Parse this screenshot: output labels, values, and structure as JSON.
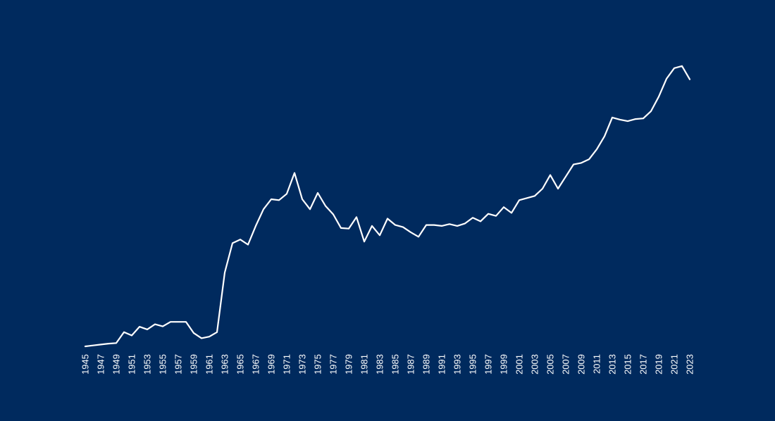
{
  "colors": {
    "background": "#002a5e",
    "line": "#ffffff",
    "text": "#ffffff"
  },
  "chart_data": {
    "type": "line",
    "title": "",
    "xlabel": "",
    "ylabel": "",
    "grid": false,
    "legend": "none",
    "x_tick_labels": [
      "1945",
      "1947",
      "1949",
      "1951",
      "1953",
      "1955",
      "1957",
      "1959",
      "1961",
      "1963",
      "1965",
      "1967",
      "1969",
      "1971",
      "1973",
      "1975",
      "1977",
      "1979",
      "1981",
      "1983",
      "1985",
      "1987",
      "1989",
      "1991",
      "1993",
      "1995",
      "1997",
      "1999",
      "2001",
      "2003",
      "2005",
      "2007",
      "2009",
      "2011",
      "2013",
      "2015",
      "2017",
      "2019",
      "2021",
      "2023"
    ],
    "ylim": [
      0,
      100
    ],
    "series": [
      {
        "x": [
          1945,
          1946,
          1947,
          1948,
          1949,
          1950,
          1951,
          1952,
          1953,
          1954,
          1955,
          1956,
          1957,
          1958,
          1959,
          1960,
          1961,
          1962,
          1963,
          1964,
          1965,
          1966,
          1967,
          1968,
          1969,
          1970,
          1971,
          1972,
          1973,
          1974,
          1975,
          1976,
          1977,
          1978,
          1979,
          1980,
          1981,
          1982,
          1983,
          1984,
          1985,
          1986,
          1987,
          1988,
          1989,
          1990,
          1991,
          1992,
          1993,
          1994,
          1995,
          1996,
          1997,
          1998,
          1999,
          2000,
          2001,
          2002,
          2003,
          2004,
          2005,
          2006,
          2007,
          2008,
          2009,
          2010,
          2011,
          2012,
          2013,
          2014,
          2015,
          2016,
          2017,
          2018,
          2019,
          2020,
          2021,
          2022,
          2023
        ],
        "values": [
          0,
          0.3,
          0.6,
          0.9,
          1.1,
          4.7,
          3.6,
          6.5,
          5.6,
          7.3,
          6.6,
          8.1,
          8.1,
          8.1,
          4.4,
          2.7,
          3.2,
          4.7,
          24.4,
          34.1,
          35.3,
          33.6,
          39.8,
          45.3,
          48.6,
          48.3,
          50.4,
          57.3,
          48.6,
          45.3,
          50.7,
          46.4,
          43.6,
          39.1,
          38.9,
          42.7,
          34.6,
          39.8,
          36.7,
          42.2,
          40.1,
          39.4,
          37.7,
          36.2,
          40.1,
          40.1,
          39.8,
          40.4,
          39.8,
          40.6,
          42.5,
          41.3,
          43.8,
          43.1,
          46.0,
          44.1,
          48.3,
          49.0,
          49.7,
          52.1,
          56.6,
          52.1,
          56.1,
          60.1,
          60.6,
          61.8,
          65.1,
          69.4,
          75.6,
          74.9,
          74.4,
          75.1,
          75.3,
          77.7,
          82.5,
          88.4,
          91.9,
          92.6,
          88.2
        ]
      }
    ]
  }
}
